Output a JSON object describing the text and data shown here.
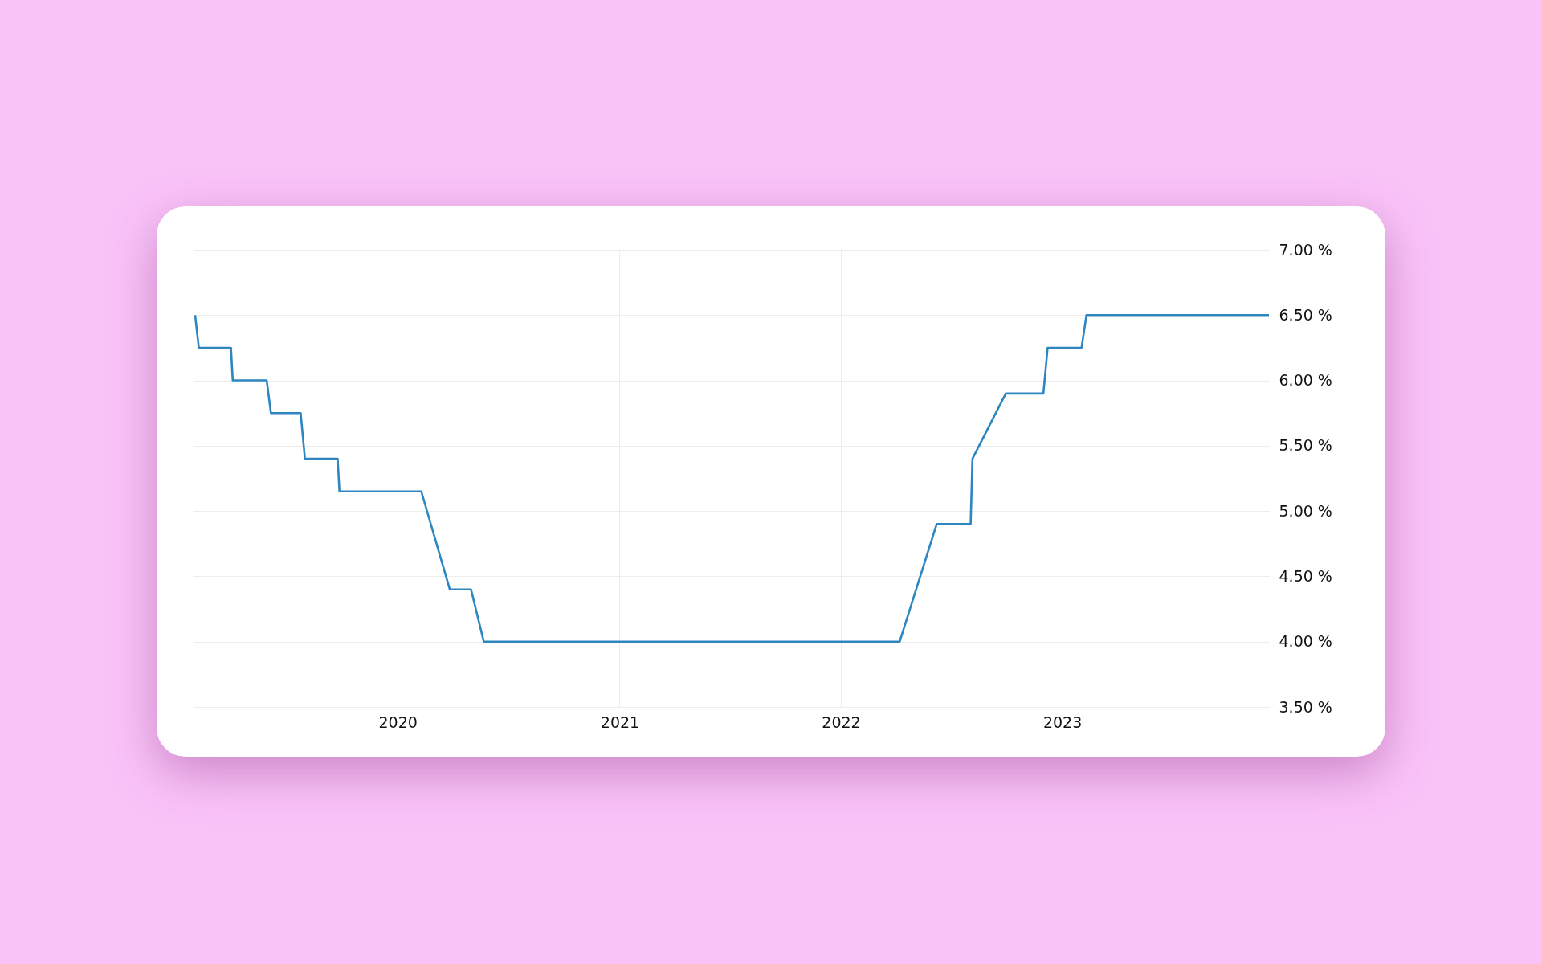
{
  "chart_data": {
    "type": "line",
    "x": [
      "2019-02-01",
      "2019-02-07",
      "2019-04-01",
      "2019-04-04",
      "2019-05-30",
      "2019-06-06",
      "2019-07-25",
      "2019-08-01",
      "2019-09-24",
      "2019-09-27",
      "2020-02-09",
      "2020-03-27",
      "2020-05-01",
      "2020-05-22",
      "2022-04-08",
      "2022-06-08",
      "2022-08-03",
      "2022-08-06",
      "2022-09-30",
      "2022-12-01",
      "2022-12-08",
      "2023-02-02",
      "2023-02-10",
      "2023-12-08"
    ],
    "series": [
      {
        "color": "#2e86c1",
        "values": [
          6.5,
          6.25,
          6.25,
          6.0,
          6.0,
          5.75,
          5.75,
          5.4,
          5.4,
          5.15,
          5.15,
          4.4,
          4.4,
          4.0,
          4.0,
          4.9,
          4.9,
          5.4,
          5.9,
          5.9,
          6.25,
          6.25,
          6.5,
          6.5
        ]
      }
    ],
    "xlim": [
      "2019-01-28",
      "2023-12-08"
    ],
    "xticks": [
      "2020",
      "2021",
      "2022",
      "2023"
    ],
    "ylim": [
      3.5,
      7.0
    ],
    "yticks": [
      {
        "value": 3.5,
        "label": "3.50 %"
      },
      {
        "value": 4.0,
        "label": "4.00 %"
      },
      {
        "value": 4.5,
        "label": "4.50 %"
      },
      {
        "value": 5.0,
        "label": "5.00 %"
      },
      {
        "value": 5.5,
        "label": "5.50 %"
      },
      {
        "value": 6.0,
        "label": "6.00 %"
      },
      {
        "value": 6.5,
        "label": "6.50 %"
      },
      {
        "value": 7.0,
        "label": "7.00 %"
      }
    ],
    "grid": true
  }
}
